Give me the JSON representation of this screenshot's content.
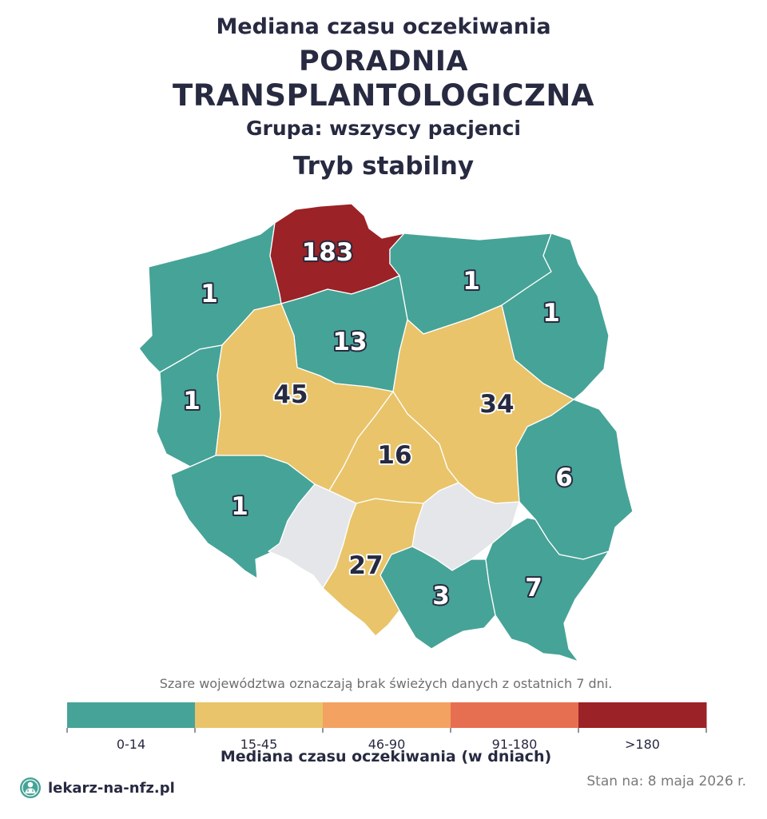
{
  "header": {
    "line1": "Mediana czasu oczekiwania",
    "line2": "PORADNIA",
    "line3": "TRANSPLANTOLOGICZNA",
    "group": "Grupa: wszyscy pacjenci",
    "mode": "Tryb stabilny"
  },
  "regions": [
    {
      "id": "zachodniopomorskie",
      "value": "1",
      "bucket": "0-14"
    },
    {
      "id": "pomorskie",
      "value": "183",
      "bucket": ">180"
    },
    {
      "id": "warminsko-mazurskie",
      "value": "1",
      "bucket": "0-14"
    },
    {
      "id": "podlaskie",
      "value": "1",
      "bucket": "0-14"
    },
    {
      "id": "kujawsko-pomorskie",
      "value": "13",
      "bucket": "0-14"
    },
    {
      "id": "lubuskie",
      "value": "1",
      "bucket": "0-14"
    },
    {
      "id": "wielkopolskie",
      "value": "45",
      "bucket": "15-45"
    },
    {
      "id": "mazowieckie",
      "value": "34",
      "bucket": "15-45"
    },
    {
      "id": "lodzkie",
      "value": "16",
      "bucket": "15-45"
    },
    {
      "id": "lubelskie",
      "value": "6",
      "bucket": "0-14"
    },
    {
      "id": "dolnoslaskie",
      "value": "1",
      "bucket": "0-14"
    },
    {
      "id": "opolskie",
      "value": "",
      "bucket": "no-data"
    },
    {
      "id": "slaskie",
      "value": "27",
      "bucket": "15-45"
    },
    {
      "id": "swietokrzyskie",
      "value": "",
      "bucket": "no-data"
    },
    {
      "id": "malopolskie",
      "value": "3",
      "bucket": "0-14"
    },
    {
      "id": "podkarpackie",
      "value": "7",
      "bucket": "0-14"
    }
  ],
  "colors": {
    "0-14": "#46a397",
    "15-45": "#e9c46a",
    "46-90": "#f3a261",
    "91-180": "#e76f51",
    ">180": "#9b2226",
    "no-data": "#e5e6e9",
    "label_dark": "#272a40",
    "label_light": "#ffffff"
  },
  "note": "Szare województwa oznaczają brak świeżych danych z ostatnich 7 dni.",
  "legend": {
    "title": "Mediana czasu oczekiwania (w dniach)",
    "bins": [
      {
        "label": "0-14",
        "color": "#46a397"
      },
      {
        "label": "15-45",
        "color": "#e9c46a"
      },
      {
        "label": "46-90",
        "color": "#f3a261"
      },
      {
        "label": "91-180",
        "color": "#e76f51"
      },
      {
        "label": ">180",
        "color": "#9b2226"
      }
    ]
  },
  "footer": {
    "brand": "lekarz-na-nfz.pl",
    "brand_icon": "doctor-logo-icon",
    "date": "Stan na: 8 maja 2026 r."
  }
}
